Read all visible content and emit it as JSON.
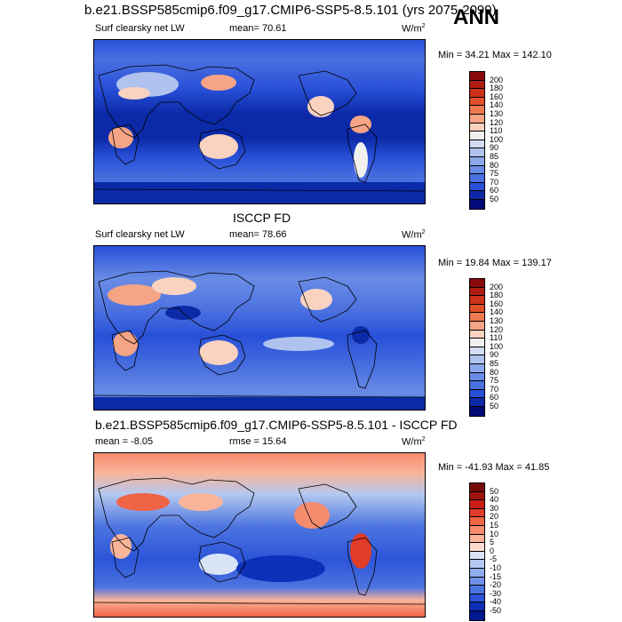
{
  "top_title": "b.e21.BSSP585cmip6.f09_g17.CMIP6-SSP5-8.5.101 (yrs 2075-2099)",
  "season": "ANN",
  "panels": [
    {
      "id": "model",
      "header": "",
      "left_label": "Surf clearsky net LW",
      "center_label": "mean=  70.61",
      "units": "W/m",
      "units_sup": "2",
      "minmax": "Min =  34.21 Max = 142.10",
      "colorbar_labels": [
        "200",
        "180",
        "160",
        "140",
        "130",
        "120",
        "110",
        "100",
        "90",
        "85",
        "80",
        "75",
        "70",
        "60",
        "50"
      ]
    },
    {
      "id": "obs",
      "header": "ISCCP FD",
      "left_label": "Surf clearsky net LW",
      "center_label": "mean=  78.66",
      "units": "W/m",
      "units_sup": "2",
      "minmax": "Min =  19.84 Max = 139.17",
      "colorbar_labels": [
        "200",
        "180",
        "160",
        "140",
        "130",
        "120",
        "110",
        "100",
        "90",
        "85",
        "80",
        "75",
        "70",
        "60",
        "50"
      ]
    },
    {
      "id": "diff",
      "header": "b.e21.BSSP585cmip6.f09_g17.CMIP6-SSP5-8.5.101 - ISCCP FD",
      "left_label": "mean =  -8.05",
      "center_label": "rmse =  15.64",
      "units": "W/m",
      "units_sup": "2",
      "minmax": "Min = -41.93 Max =  41.85",
      "colorbar_labels": [
        "50",
        "40",
        "30",
        "20",
        "15",
        "10",
        "5",
        "0",
        "-5",
        "-10",
        "-15",
        "-20",
        "-30",
        "-40",
        "-50"
      ]
    }
  ],
  "colors": {
    "abs_scale": [
      "#8b0a0a",
      "#b01e12",
      "#cc3219",
      "#e0502a",
      "#ee7850",
      "#f6a486",
      "#fad2c0",
      "#f2f0ee",
      "#d2dcf2",
      "#afc3ee",
      "#8ca8ea",
      "#6a8ce6",
      "#4a70e0",
      "#2850d8",
      "#0c2aa8",
      "#000a78"
    ],
    "diff_scale": [
      "#780a0a",
      "#a0140c",
      "#c81e14",
      "#e03c28",
      "#f06446",
      "#f68c6e",
      "#fab49a",
      "#fcdcd0",
      "#d8e4f6",
      "#b4c8f0",
      "#90acea",
      "#6e90e6",
      "#4c74e0",
      "#2c54d8",
      "#0c30b8",
      "#001890"
    ]
  }
}
